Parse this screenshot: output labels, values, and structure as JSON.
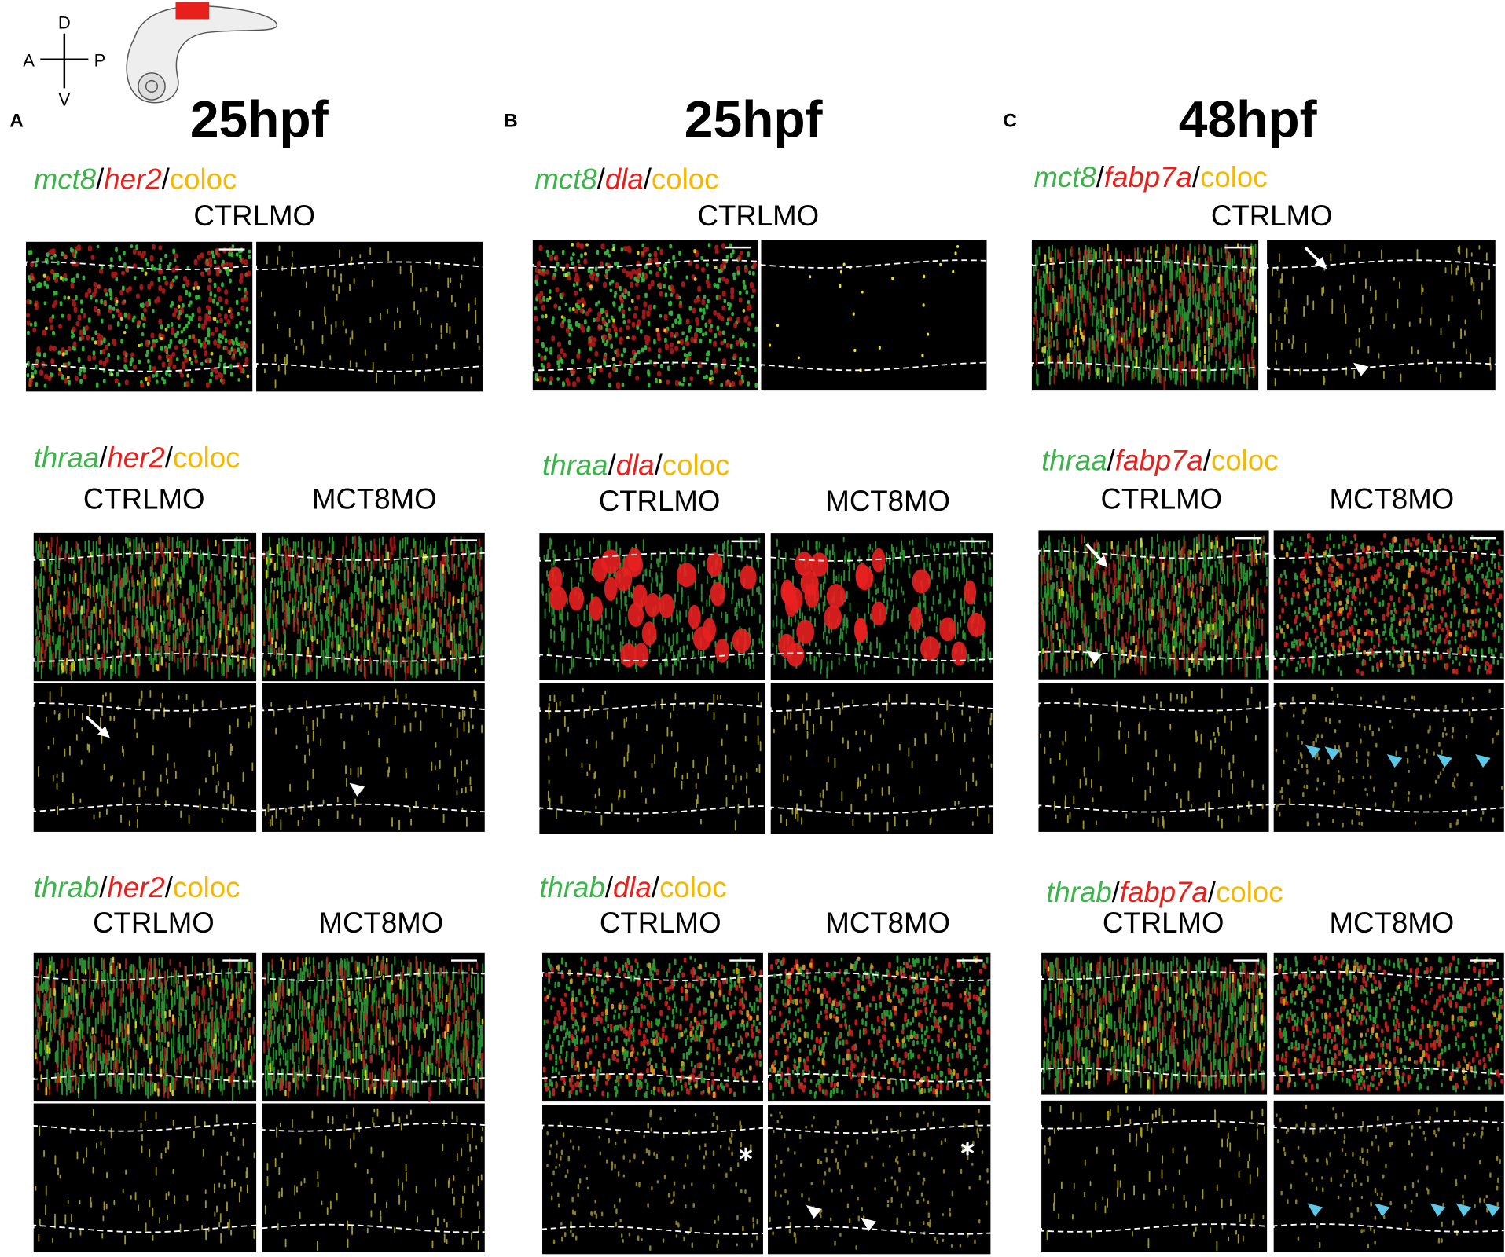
{
  "orientation": {
    "dorsal": "D",
    "ventral": "V",
    "anterior": "A",
    "posterior": "P"
  },
  "panels": [
    {
      "letter": "A",
      "title": "25hpf",
      "rows": [
        {
          "label": [
            "mct8",
            "/",
            "her2",
            "/",
            "coloc"
          ],
          "conditions": [
            "CTRLMO"
          ]
        },
        {
          "label": [
            "thraa",
            "/",
            "her2",
            "/",
            "coloc"
          ],
          "conditions": [
            "CTRLMO",
            "MCT8MO"
          ]
        },
        {
          "label": [
            "thrab",
            "/",
            "her2",
            "/",
            "coloc"
          ],
          "conditions": [
            "CTRLMO",
            "MCT8MO"
          ]
        }
      ]
    },
    {
      "letter": "B",
      "title": "25hpf",
      "rows": [
        {
          "label": [
            "mct8",
            "/",
            "dla",
            "/",
            "coloc"
          ],
          "conditions": [
            "CTRLMO"
          ]
        },
        {
          "label": [
            "thraa",
            "/",
            "dla",
            "/",
            "coloc"
          ],
          "conditions": [
            "CTRLMO",
            "MCT8MO"
          ]
        },
        {
          "label": [
            "thrab",
            "/",
            "dla",
            "/",
            "coloc"
          ],
          "conditions": [
            "CTRLMO",
            "MCT8MO"
          ]
        }
      ]
    },
    {
      "letter": "C",
      "title": "48hpf",
      "rows": [
        {
          "label": [
            "mct8",
            "/",
            "fabp7a",
            "/",
            "coloc"
          ],
          "conditions": [
            "CTRLMO"
          ]
        },
        {
          "label": [
            "thraa",
            "/",
            "fabp7a",
            "/",
            "coloc"
          ],
          "conditions": [
            "CTRLMO",
            "MCT8MO"
          ]
        },
        {
          "label": [
            "thrab",
            "/",
            "fabp7a",
            "/",
            "coloc"
          ],
          "conditions": [
            "CTRLMO",
            "MCT8MO"
          ]
        }
      ]
    }
  ]
}
